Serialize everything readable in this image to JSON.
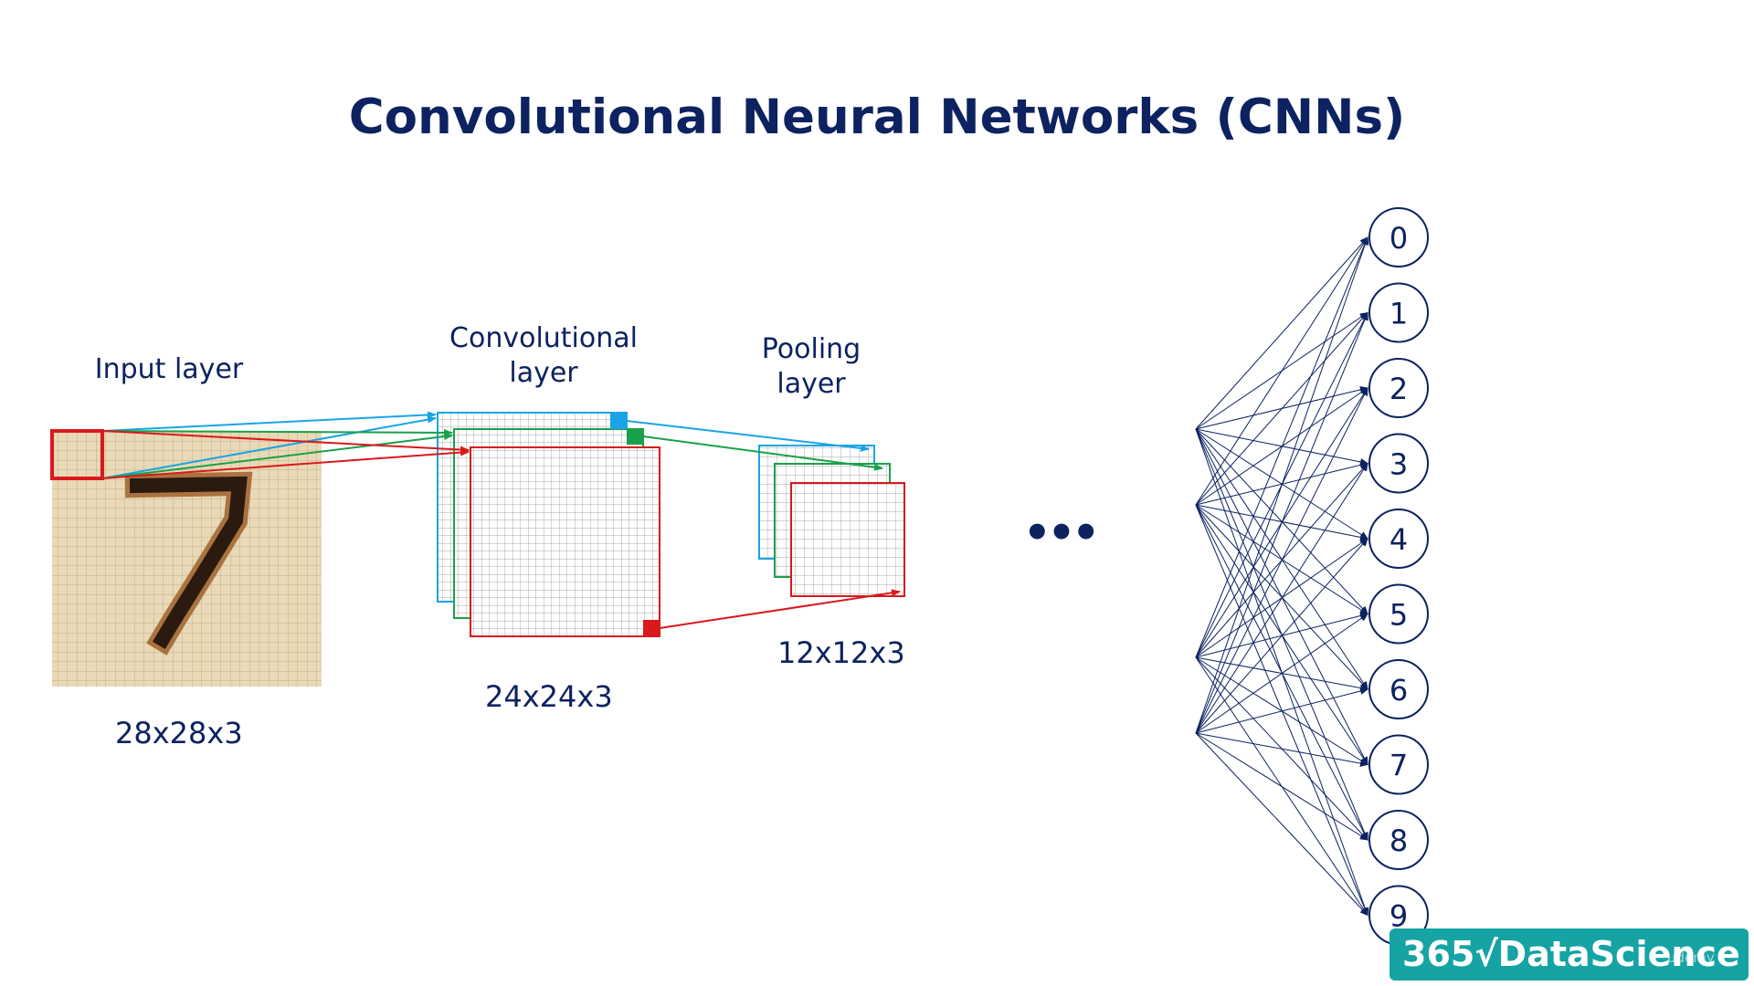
{
  "title": "Convolutional Neural Networks (CNNs)",
  "labels": {
    "input_layer": "Input layer",
    "conv_layer": [
      "Convolutional",
      "layer"
    ],
    "pooling_layer": [
      "Pooling",
      "layer"
    ]
  },
  "dimensions": {
    "input": "28x28x3",
    "conv": "24x24x3",
    "pooling": "12x12x3"
  },
  "ellipsis": "•••",
  "output_nodes": [
    "0",
    "1",
    "2",
    "3",
    "4",
    "5",
    "6",
    "7",
    "8",
    "9"
  ],
  "logo": {
    "text": "365√DataScience",
    "watermark": "udemy"
  },
  "colors": {
    "navy": "#0d2260",
    "red": "#d9191c",
    "blue": "#19a4e6",
    "green": "#1aa04a",
    "teal": "#16a3a3",
    "beige": "#e9d9b6"
  }
}
